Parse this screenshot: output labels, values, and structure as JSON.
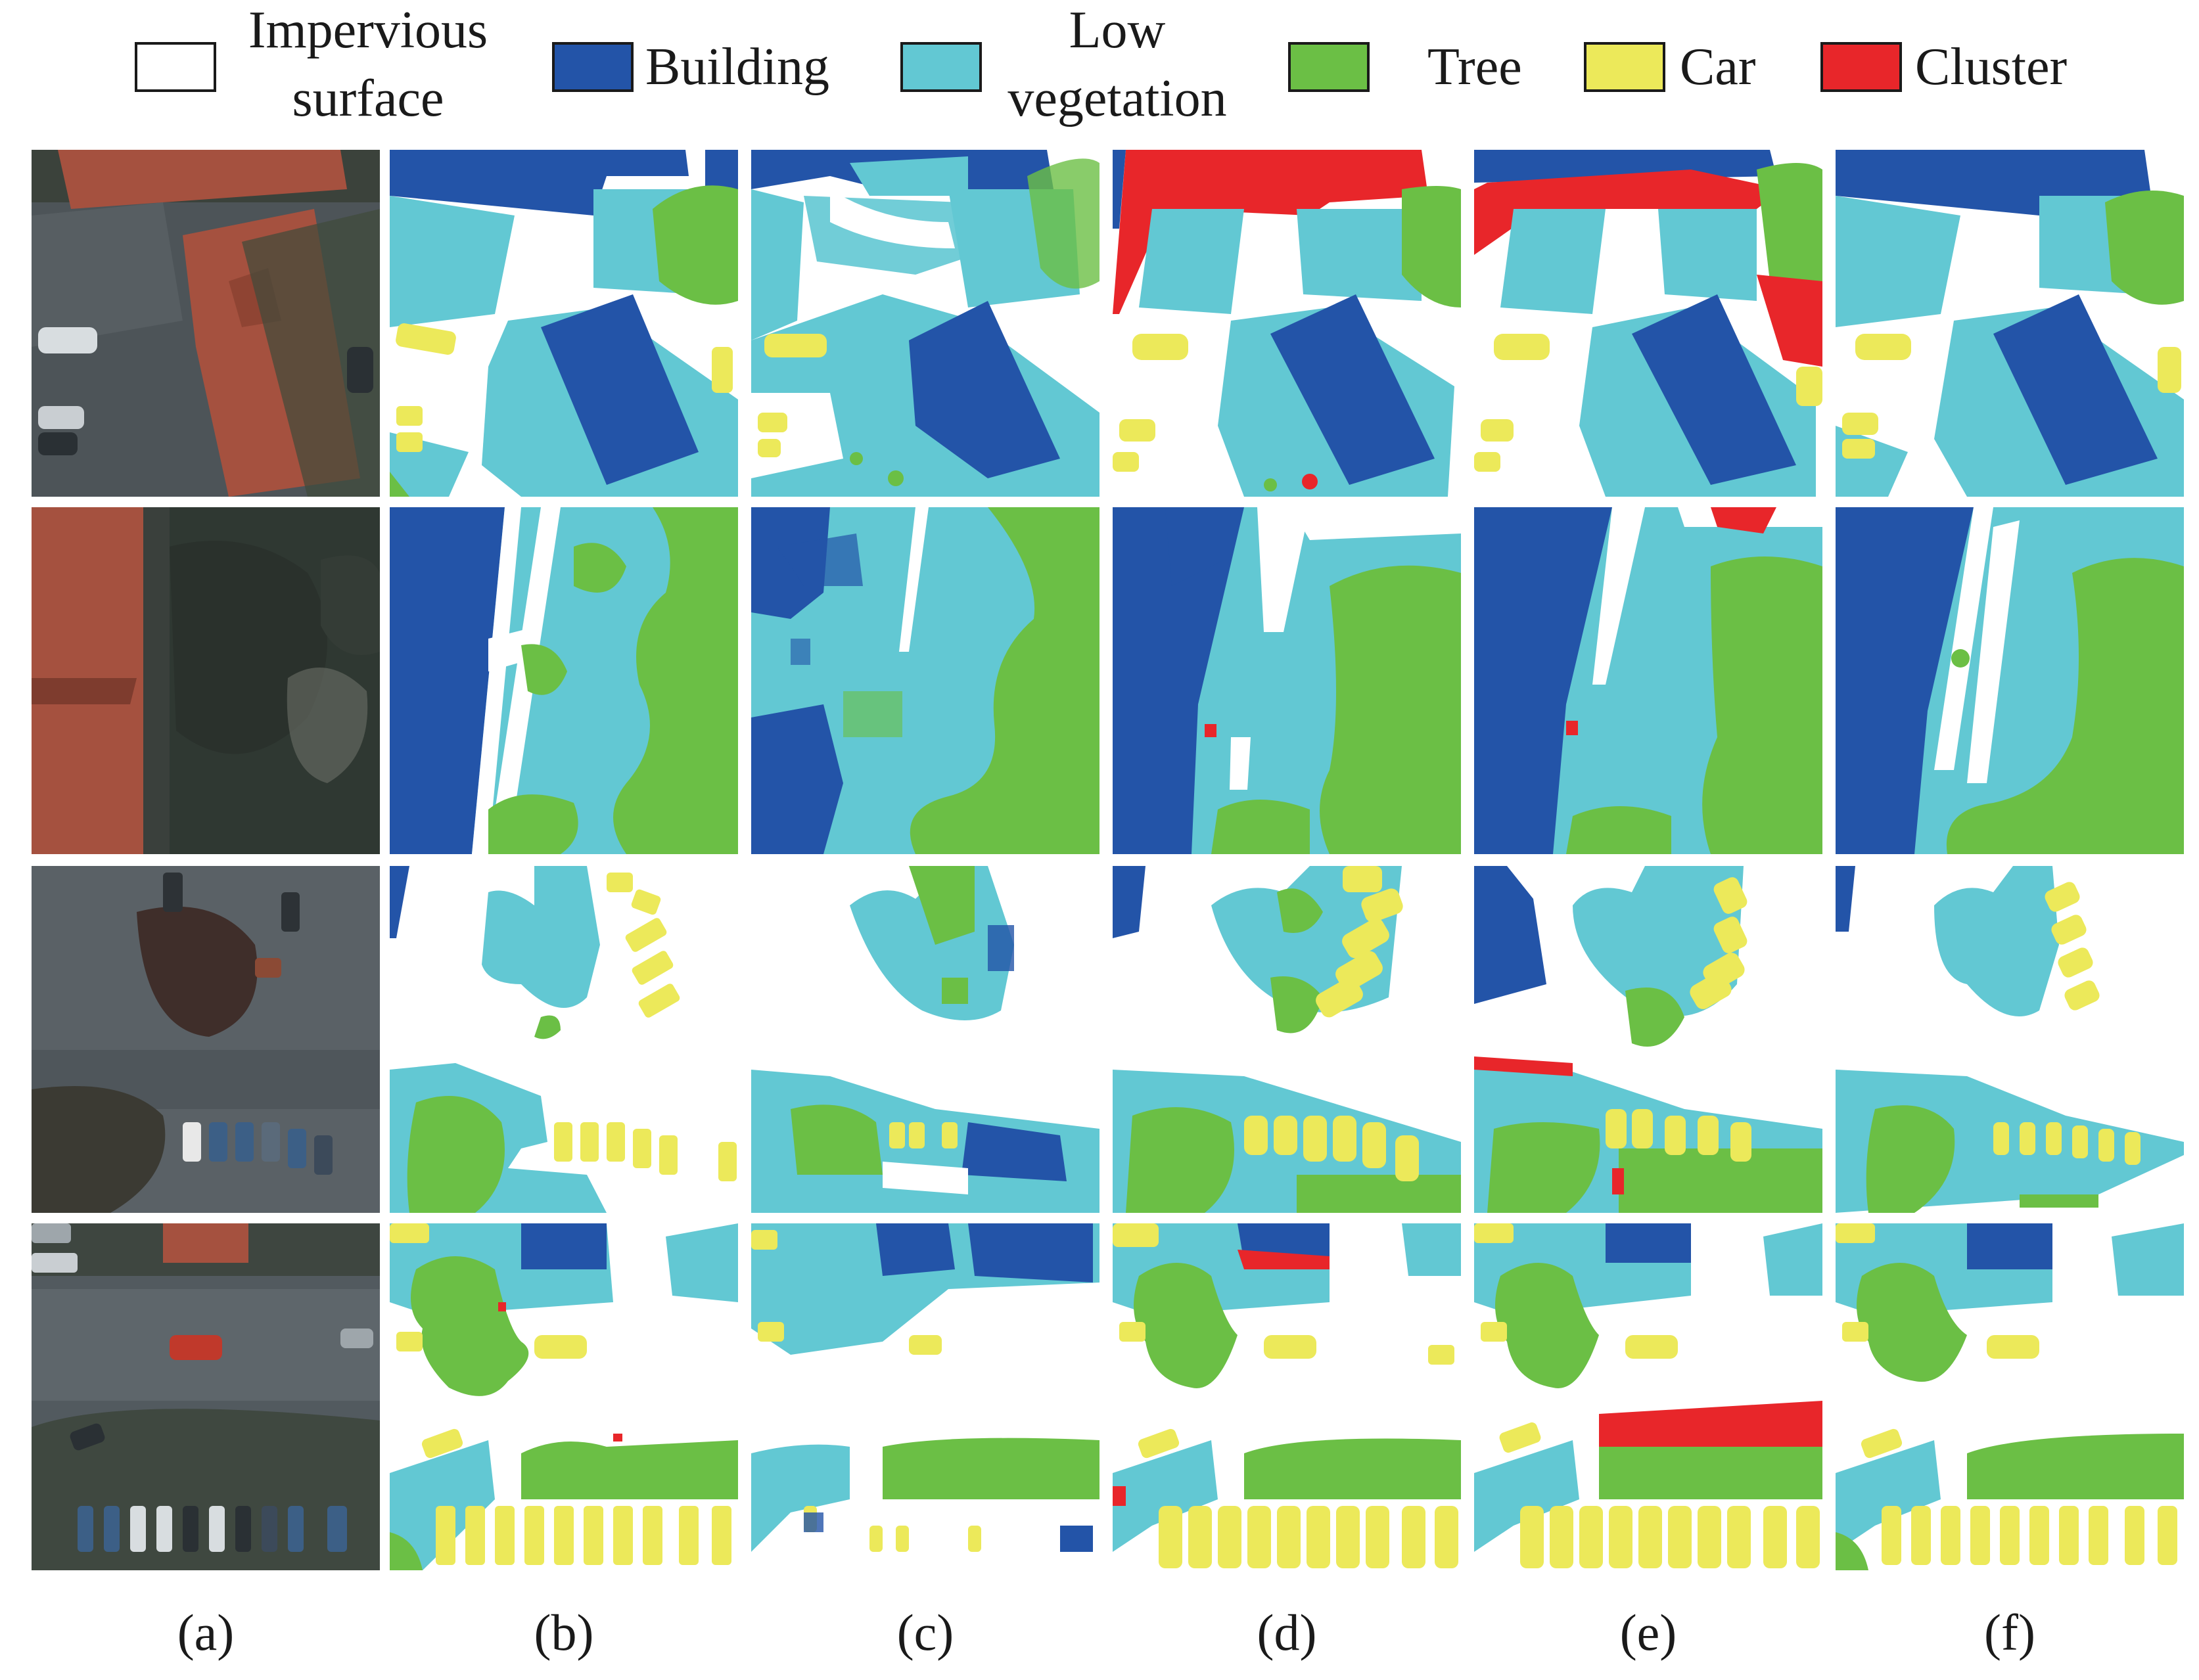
{
  "legend": {
    "items": [
      {
        "key": "impervious",
        "label_line1": "Impervious",
        "label_line2": "surface",
        "color": "#ffffff"
      },
      {
        "key": "building",
        "label": "Building",
        "color": "#2354a8"
      },
      {
        "key": "lowveg",
        "label_line1": "Low",
        "label_line2": "vegetation",
        "color": "#62c8d3"
      },
      {
        "key": "tree",
        "label": "Tree",
        "color": "#6bbf45"
      },
      {
        "key": "car",
        "label": "Car",
        "color": "#ece95a"
      },
      {
        "key": "cluster",
        "label": "Cluster",
        "color": "#e8262a"
      }
    ]
  },
  "columns": {
    "labels": [
      "(a)",
      "(b)",
      "(c)",
      "(d)",
      "(e)",
      "(f)"
    ]
  },
  "colors": {
    "impervious": "#ffffff",
    "building": "#2354a8",
    "lowveg": "#62c8d3",
    "tree": "#6bbf45",
    "car": "#ece95a",
    "cluster": "#e8262a",
    "photo_ground": "#4b5256",
    "photo_roof": "#a5513f",
    "photo_grass": "#3f4a3a",
    "photo_dark": "#2b3230"
  }
}
